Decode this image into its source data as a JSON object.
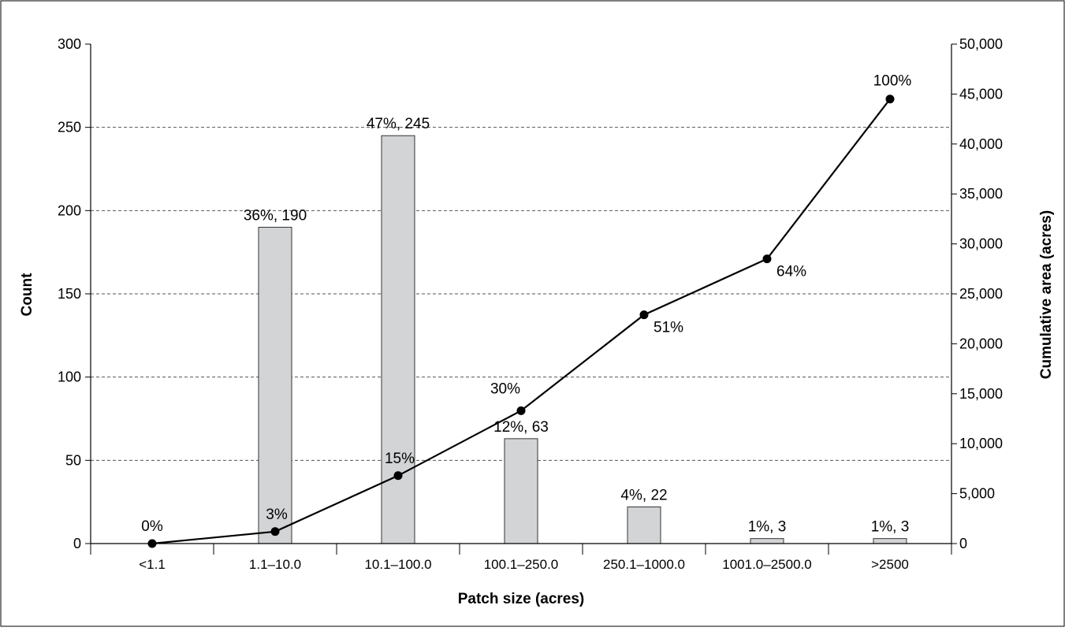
{
  "chart_data": {
    "type": "bar",
    "xlabel": "Patch size (acres)",
    "ylabel": "Count",
    "y2label": "Cumulative area (acres)",
    "categories": [
      "<1.1",
      "1.1–10.0",
      "10.1–100.0",
      "100.1–250.0",
      "250.1–1000.0",
      "1001.0–2500.0",
      ">2500"
    ],
    "ylim": [
      0,
      300
    ],
    "yticks": [
      0,
      50,
      100,
      150,
      200,
      250,
      300
    ],
    "y2lim": [
      0,
      50000
    ],
    "y2ticks": [
      "0",
      "5,000",
      "10,000",
      "15,000",
      "20,000",
      "25,000",
      "30,000",
      "35,000",
      "40,000",
      "45,000",
      "50,000"
    ],
    "grid": "horizontal dashed",
    "series": [
      {
        "type": "bar",
        "axis": "left",
        "values": [
          0,
          190,
          245,
          63,
          22,
          3,
          3
        ],
        "labels": [
          "",
          "36%, 190",
          "47%, 245",
          "12%, 63",
          "4%, 22",
          "1%, 3",
          "1%, 3"
        ]
      },
      {
        "type": "line",
        "axis": "right",
        "values": [
          0,
          1200,
          6800,
          13300,
          22900,
          28500,
          44500
        ],
        "labels": [
          "0%",
          "3%",
          "15%",
          "30%",
          "51%",
          "64%",
          "100%"
        ]
      }
    ]
  }
}
